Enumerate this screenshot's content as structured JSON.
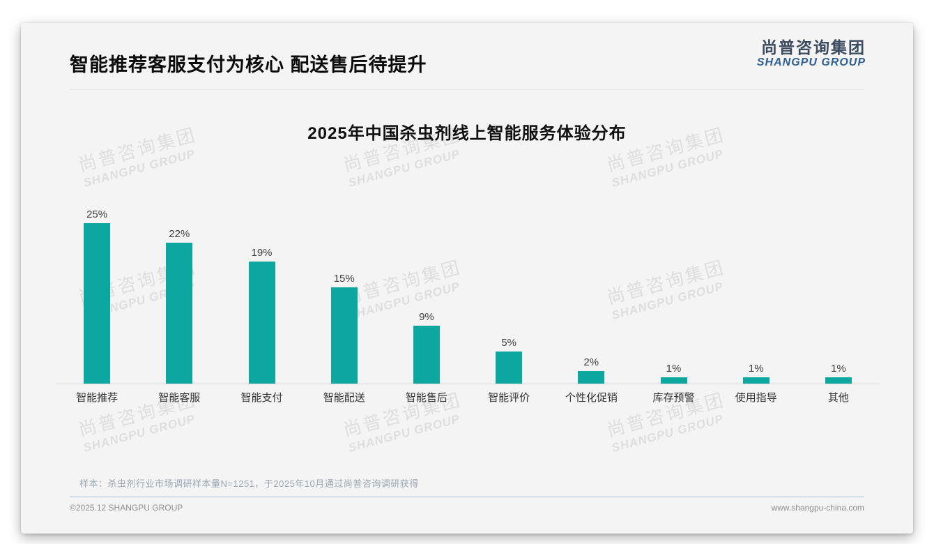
{
  "header": {
    "title": "智能推荐客服支付为核心 配送售后待提升",
    "logo": {
      "cn": "尚普咨询集团",
      "en": "SHANGPU GROUP"
    }
  },
  "watermark": {
    "cn": "尚普咨询集团",
    "en": "SHANGPU GROUP"
  },
  "chart_data": {
    "type": "bar",
    "title": "2025年中国杀虫剂线上智能服务体验分布",
    "categories": [
      "智能推荐",
      "智能客服",
      "智能支付",
      "智能配送",
      "智能售后",
      "智能评价",
      "个性化促销",
      "库存预警",
      "使用指导",
      "其他"
    ],
    "values": [
      25,
      22,
      19,
      15,
      9,
      5,
      2,
      1,
      1,
      1
    ],
    "value_labels": [
      "25%",
      "22%",
      "19%",
      "15%",
      "9%",
      "5%",
      "2%",
      "1%",
      "1%",
      "1%"
    ],
    "unit": "%",
    "xlabel": "",
    "ylabel": "",
    "ylim": [
      0,
      27
    ],
    "grid": false,
    "legend": "none",
    "bar_color": "#0CA8A0",
    "value_label_color": "#3f3f3f"
  },
  "footnote": "样本：杀虫剂行业市场调研样本量N=1251，于2025年10月通过尚普咨询调研获得",
  "footer": {
    "left": "©2025.12 SHANGPU GROUP",
    "right": "www.shangpu-china.com"
  }
}
